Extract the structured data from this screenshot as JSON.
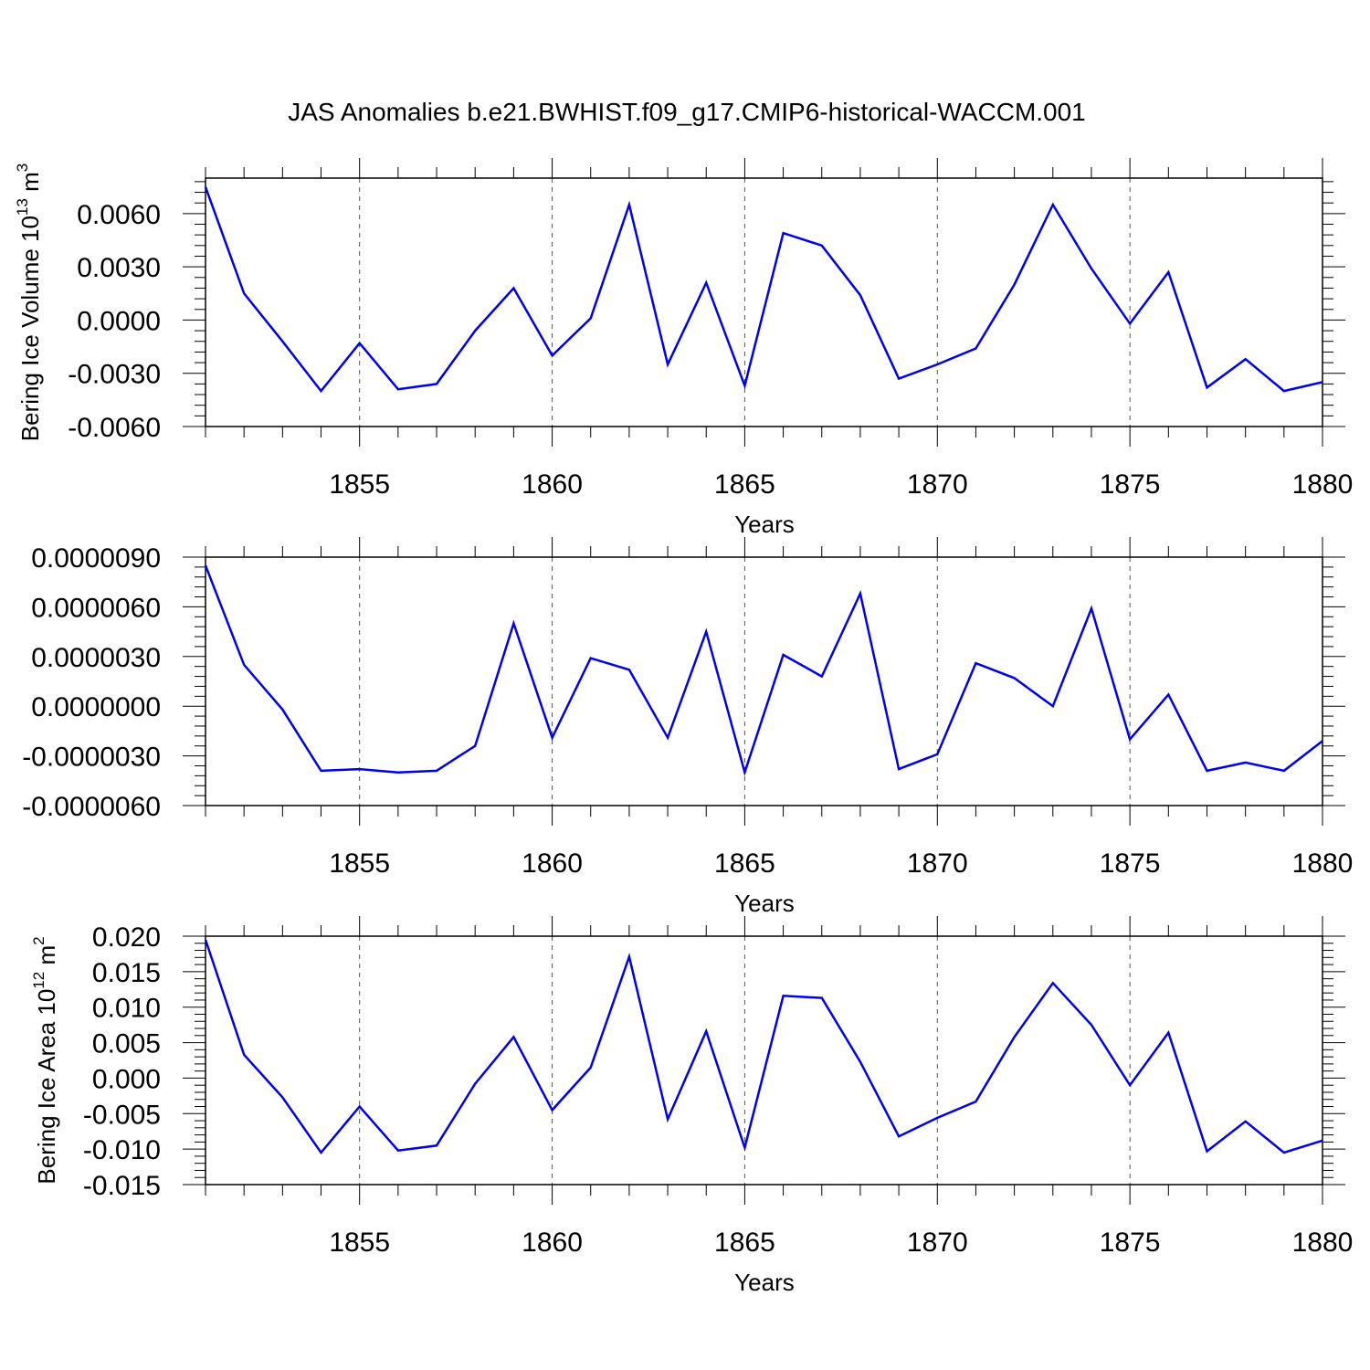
{
  "figure": {
    "title": "JAS Anomalies b.e21.BWHIST.f09_g17.CMIP6-historical-WACCM.001"
  },
  "chart_data": [
    {
      "type": "line",
      "title": "",
      "xlabel": "Years",
      "ylabel": "Bering Ice Volume 10",
      "ylabel_sup": "13",
      "ylabel_unit": " m",
      "ylabel_unit_sup": "3",
      "xlim": [
        1851,
        1880
      ],
      "ylim": [
        -0.006,
        0.008
      ],
      "xticks": [
        1855,
        1860,
        1865,
        1870,
        1875,
        1880
      ],
      "xtick_labels": [
        "1855",
        "1860",
        "1865",
        "1870",
        "1875",
        "1880"
      ],
      "yticks": [
        -0.006,
        -0.003,
        0.0,
        0.003,
        0.006
      ],
      "ytick_labels": [
        "-0.0060",
        "-0.0030",
        "0.0000",
        "0.0030",
        "0.0060"
      ],
      "grid": "vertical dashed at major x ticks",
      "color": "#0000ee",
      "series": [
        {
          "x": [
            1851,
            1852,
            1853,
            1854,
            1855,
            1856,
            1857,
            1858,
            1859,
            1860,
            1861,
            1862,
            1863,
            1864,
            1865,
            1866,
            1867,
            1868,
            1869,
            1870,
            1871,
            1872,
            1873,
            1874,
            1875,
            1876,
            1877,
            1878,
            1879,
            1880
          ],
          "y": [
            0.0075,
            0.0015,
            -0.0012,
            -0.004,
            -0.0013,
            -0.0039,
            -0.0036,
            -0.0006,
            0.0018,
            -0.002,
            0.0001,
            0.0065,
            -0.0025,
            0.0021,
            -0.0037,
            0.0049,
            0.0042,
            0.0014,
            -0.0033,
            -0.0025,
            -0.0016,
            0.002,
            0.0065,
            0.0029,
            -0.0002,
            0.0027,
            -0.0038,
            -0.0022,
            -0.004,
            -0.0035
          ]
        }
      ]
    },
    {
      "type": "line",
      "title": "",
      "xlabel": "Years",
      "ylabel": "",
      "xlim": [
        1851,
        1880
      ],
      "ylim": [
        -6e-06,
        9e-06
      ],
      "xticks": [
        1855,
        1860,
        1865,
        1870,
        1875,
        1880
      ],
      "xtick_labels": [
        "1855",
        "1860",
        "1865",
        "1870",
        "1875",
        "1880"
      ],
      "yticks": [
        -6e-06,
        -3e-06,
        0.0,
        3e-06,
        6e-06,
        9e-06
      ],
      "ytick_labels": [
        "-0.0000060",
        "-0.0000030",
        "0.0000000",
        "0.0000030",
        "0.0000060",
        "0.0000090"
      ],
      "grid": "vertical dashed at major x ticks",
      "color": "#0000ee",
      "series": [
        {
          "x": [
            1851,
            1852,
            1853,
            1854,
            1855,
            1856,
            1857,
            1858,
            1859,
            1860,
            1861,
            1862,
            1863,
            1864,
            1865,
            1866,
            1867,
            1868,
            1869,
            1870,
            1871,
            1872,
            1873,
            1874,
            1875,
            1876,
            1877,
            1878,
            1879,
            1880
          ],
          "y": [
            8.5e-06,
            2.5e-06,
            -2e-07,
            -3.9e-06,
            -3.8e-06,
            -4e-06,
            -3.9e-06,
            -2.4e-06,
            5e-06,
            -1.9e-06,
            2.9e-06,
            2.2e-06,
            -1.9e-06,
            4.5e-06,
            -4e-06,
            3.1e-06,
            1.8e-06,
            6.8e-06,
            -3.8e-06,
            -2.9e-06,
            2.6e-06,
            1.7e-06,
            0.0,
            5.9e-06,
            -2e-06,
            7e-07,
            -3.9e-06,
            -3.4e-06,
            -3.9e-06,
            -2.1e-06
          ]
        }
      ]
    },
    {
      "type": "line",
      "title": "",
      "xlabel": "Years",
      "ylabel": "Bering Ice Area 10",
      "ylabel_sup": "12",
      "ylabel_unit": " m",
      "ylabel_unit_sup": "2",
      "xlim": [
        1851,
        1880
      ],
      "ylim": [
        -0.015,
        0.02
      ],
      "xticks": [
        1855,
        1860,
        1865,
        1870,
        1875,
        1880
      ],
      "xtick_labels": [
        "1855",
        "1860",
        "1865",
        "1870",
        "1875",
        "1880"
      ],
      "yticks": [
        -0.015,
        -0.01,
        -0.005,
        0.0,
        0.005,
        0.01,
        0.015,
        0.02
      ],
      "ytick_labels": [
        "-0.015",
        "-0.010",
        "-0.005",
        "0.000",
        "0.005",
        "0.010",
        "0.015",
        "0.020"
      ],
      "grid": "vertical dashed at major x ticks",
      "color": "#0000ee",
      "series": [
        {
          "x": [
            1851,
            1852,
            1853,
            1854,
            1855,
            1856,
            1857,
            1858,
            1859,
            1860,
            1861,
            1862,
            1863,
            1864,
            1865,
            1866,
            1867,
            1868,
            1869,
            1870,
            1871,
            1872,
            1873,
            1874,
            1875,
            1876,
            1877,
            1878,
            1879,
            1880
          ],
          "y": [
            0.0195,
            0.0033,
            -0.0027,
            -0.0105,
            -0.004,
            -0.0102,
            -0.0095,
            -0.0008,
            0.0058,
            -0.0045,
            0.0015,
            0.0171,
            -0.0058,
            0.0066,
            -0.0098,
            0.0116,
            0.0113,
            0.0023,
            -0.0082,
            -0.0056,
            -0.0033,
            0.0058,
            0.0134,
            0.0075,
            -0.001,
            0.0064,
            -0.0103,
            -0.0061,
            -0.0105,
            -0.0088
          ]
        }
      ]
    }
  ]
}
